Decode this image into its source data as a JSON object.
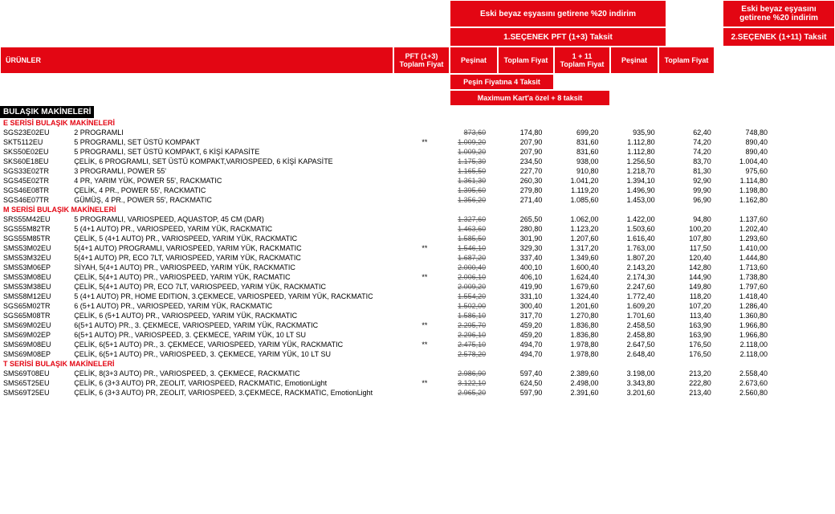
{
  "header": {
    "promo": "Eski beyaz eşyasını getirene %20 indirim",
    "option1": "1.SEÇENEK PFT (1+3) Taksit",
    "option2": "2.SEÇENEK (1+11) Taksit",
    "urunler": "ÜRÜNLER",
    "pft": "PFT (1+3) Toplam Fiyat",
    "pesinat": "Peşinat",
    "toplam": "Toplam Fiyat",
    "t111": "1 + 11 Toplam Fiyat",
    "sub_pesin": "Peşin Fiyatına 4 Taksit",
    "sub_max": "Maximum Kart'a özel + 8 taksit",
    "black": "BULAŞIK MAKİNELERİ"
  },
  "sections": [
    {
      "title": "E SERİSİ BULAŞIK MAKİNELERİ",
      "rows": [
        {
          "code": "SGS23E02EU",
          "desc": "2 PROGRAMLI",
          "star": "",
          "c": [
            "873,60",
            "174,80",
            "699,20",
            "935,90",
            "62,40",
            "748,80"
          ]
        },
        {
          "code": "SKT5112EU",
          "desc": "5 PROGRAMLI, SET ÜSTÜ KOMPAKT",
          "star": "**",
          "c": [
            "1.009,20",
            "207,90",
            "831,60",
            "1.112,80",
            "74,20",
            "890,40"
          ]
        },
        {
          "code": "SKS50E02EU",
          "desc": "5 PROGRAMLI, SET ÜSTÜ KOMPAKT, 6 KİŞİ KAPASİTE",
          "star": "",
          "c": [
            "1.009,20",
            "207,90",
            "831,60",
            "1.112,80",
            "74,20",
            "890,40"
          ]
        },
        {
          "code": "SKS60E18EU",
          "desc": "ÇELİK, 6 PROGRAMLI, SET ÜSTÜ KOMPAKT,VARIOSPEED, 6 KİŞİ KAPASİTE",
          "star": "",
          "c": [
            "1.175,30",
            "234,50",
            "938,00",
            "1.256,50",
            "83,70",
            "1.004,40"
          ]
        },
        {
          "code": "SGS33E02TR",
          "desc": "3 PROGRAMLI, POWER 55'",
          "star": "",
          "c": [
            "1.165,50",
            "227,70",
            "910,80",
            "1.218,70",
            "81,30",
            "975,60"
          ]
        },
        {
          "code": "SGS45E02TR",
          "desc": "4 PR, YARIM YÜK, POWER 55', RACKMATIC",
          "star": "",
          "c": [
            "1.361,30",
            "260,30",
            "1.041,20",
            "1.394,10",
            "92,90",
            "1.114,80"
          ]
        },
        {
          "code": "SGS46E08TR",
          "desc": "ÇELİK, 4 PR., POWER 55', RACKMATIC",
          "star": "",
          "c": [
            "1.395,60",
            "279,80",
            "1.119,20",
            "1.496,90",
            "99,90",
            "1.198,80"
          ]
        },
        {
          "code": "SGS46E07TR",
          "desc": "GÜMÜŞ, 4 PR., POWER 55', RACKMATIC",
          "star": "",
          "c": [
            "1.356,20",
            "271,40",
            "1.085,60",
            "1.453,00",
            "96,90",
            "1.162,80"
          ]
        }
      ]
    },
    {
      "title": "M SERİSİ BULAŞIK MAKİNELERİ",
      "rows": [
        {
          "code": "SRS55M42EU",
          "desc": "5 PROGRAMLI, VARIOSPEED, AQUASTOP, 45 CM (DAR)",
          "star": "",
          "c": [
            "1.327,60",
            "265,50",
            "1.062,00",
            "1.422,00",
            "94,80",
            "1.137,60"
          ]
        },
        {
          "code": "SGS55M82TR",
          "desc": "5 (4+1 AUTO) PR., VARIOSPEED, YARIM YÜK, RACKMATIC",
          "star": "",
          "c": [
            "1.463,60",
            "280,80",
            "1.123,20",
            "1.503,60",
            "100,20",
            "1.202,40"
          ]
        },
        {
          "code": "SGS55M85TR",
          "desc": "ÇELİK, 5 (4+1 AUTO) PR., VARIOSPEED, YARIM YÜK, RACKMATIC",
          "star": "",
          "c": [
            "1.585,50",
            "301,90",
            "1.207,60",
            "1.616,40",
            "107,80",
            "1.293,60"
          ]
        },
        {
          "code": "SMS53M02EU",
          "desc": "5(4+1 AUTO) PROGRAMLI, VARIOSPEED, YARIM YÜK, RACKMATIC",
          "star": "**",
          "c": [
            "1.546,10",
            "329,30",
            "1.317,20",
            "1.763,00",
            "117,50",
            "1.410,00"
          ]
        },
        {
          "code": "SMS53M32EU",
          "desc": "5(4+1 AUTO) PR, ECO 7LT, VARIOSPEED, YARIM YÜK, RACKMATIC",
          "star": "",
          "c": [
            "1.687,20",
            "337,40",
            "1.349,60",
            "1.807,20",
            "120,40",
            "1.444,80"
          ]
        },
        {
          "code": "SMS53M06EP",
          "desc": "SİYAH, 5(4+1 AUTO) PR., VARIOSPEED, YARIM YÜK, RACKMATIC",
          "star": "",
          "c": [
            "2.000,40",
            "400,10",
            "1.600,40",
            "2.143,20",
            "142,80",
            "1.713,60"
          ]
        },
        {
          "code": "SMS53M08EU",
          "desc": "ÇELİK, 5(4+1 AUTO) PR., VARIOSPEED, YARIM YÜK, RACMATIC",
          "star": "**",
          "c": [
            "2.006,10",
            "406,10",
            "1.624,40",
            "2.174,30",
            "144,90",
            "1.738,80"
          ]
        },
        {
          "code": "SMS53M38EU",
          "desc": "ÇELİK, 5(4+1 AUTO) PR, ECO 7LT, VARIOSPEED, YARIM YÜK, RACKMATIC",
          "star": "",
          "c": [
            "2.009,20",
            "419,90",
            "1.679,60",
            "2.247,60",
            "149,80",
            "1.797,60"
          ]
        },
        {
          "code": "SMS58M12EU",
          "desc": "5 (4+1 AUTO) PR, HOME EDITION, 3.ÇEKMECE, VARIOSPEED, YARIM YÜK, RACKMATIC",
          "star": "",
          "c": [
            "1.554,20",
            "331,10",
            "1.324,40",
            "1.772,40",
            "118,20",
            "1.418,40"
          ]
        },
        {
          "code": "SGS65M02TR",
          "desc": "6 (5+1 AUTO) PR., VARIOSPEED, YARIM YÜK, RACKMATIC",
          "star": "",
          "c": [
            "1.502,00",
            "300,40",
            "1.201,60",
            "1.609,20",
            "107,20",
            "1.286,40"
          ]
        },
        {
          "code": "SGS65M08TR",
          "desc": "ÇELİK, 6 (5+1 AUTO) PR., VARIOSPEED, YARIM YÜK, RACKMATIC",
          "star": "",
          "c": [
            "1.586,10",
            "317,70",
            "1.270,80",
            "1.701,60",
            "113,40",
            "1.360,80"
          ]
        },
        {
          "code": "SMS69M02EU",
          "desc": "6(5+1 AUTO) PR., 3. ÇEKMECE, VARIOSPEED, YARIM YÜK, RACKMATIC",
          "star": "**",
          "c": [
            "2.295,70",
            "459,20",
            "1.836,80",
            "2.458,50",
            "163,90",
            "1.966,80"
          ]
        },
        {
          "code": "SMS69M02EP",
          "desc": "6(5+1 AUTO) PR., VARIOSPEED, 3. ÇEKMECE, YARIM YÜK, 10 LT SU",
          "star": "",
          "c": [
            "2.296,10",
            "459,20",
            "1.836,80",
            "2.458,80",
            "163,90",
            "1.966,80"
          ]
        },
        {
          "code": "SMS69M08EU",
          "desc": "ÇELİK, 6(5+1 AUTO) PR., 3. ÇEKMECE, VARIOSPEED, YARIM YÜK, RACKMATIC",
          "star": "**",
          "c": [
            "2.475,10",
            "494,70",
            "1.978,80",
            "2.647,50",
            "176,50",
            "2.118,00"
          ]
        },
        {
          "code": "SMS69M08EP",
          "desc": "ÇELİK, 6(5+1 AUTO) PR., VARIOSPEED, 3. ÇEKMECE, YARIM YÜK, 10 LT SU",
          "star": "",
          "c": [
            "2.578,20",
            "494,70",
            "1.978,80",
            "2.648,40",
            "176,50",
            "2.118,00"
          ]
        }
      ]
    },
    {
      "title": "T SERİSİ BULAŞIK MAKİNELERİ",
      "rows": [
        {
          "code": "SMS69T08EU",
          "desc": "ÇELİK, 8(3+3 AUTO) PR., VARIOSPEED, 3. ÇEKMECE, RACKMATIC",
          "star": "",
          "c": [
            "2.986,90",
            "597,40",
            "2.389,60",
            "3.198,00",
            "213,20",
            "2.558,40"
          ]
        },
        {
          "code": "SMS65T25EU",
          "desc": "ÇELİK, 6 (3+3 AUTO) PR, ZEOLIT, VARIOSPEED, RACKMATIC, EmotionLight",
          "star": "**",
          "c": [
            "3.122,10",
            "624,50",
            "2.498,00",
            "3.343,80",
            "222,80",
            "2.673,60"
          ]
        },
        {
          "code": "SMS69T25EU",
          "desc": "ÇELİK, 6 (3+3 AUTO) PR, ZEOLIT, VARIOSPEED, 3.ÇEKMECE, RACKMATIC, EmotionLight",
          "star": "",
          "c": [
            "2.965,20",
            "597,90",
            "2.391,60",
            "3.201,60",
            "213,40",
            "2.560,80"
          ]
        }
      ]
    }
  ]
}
